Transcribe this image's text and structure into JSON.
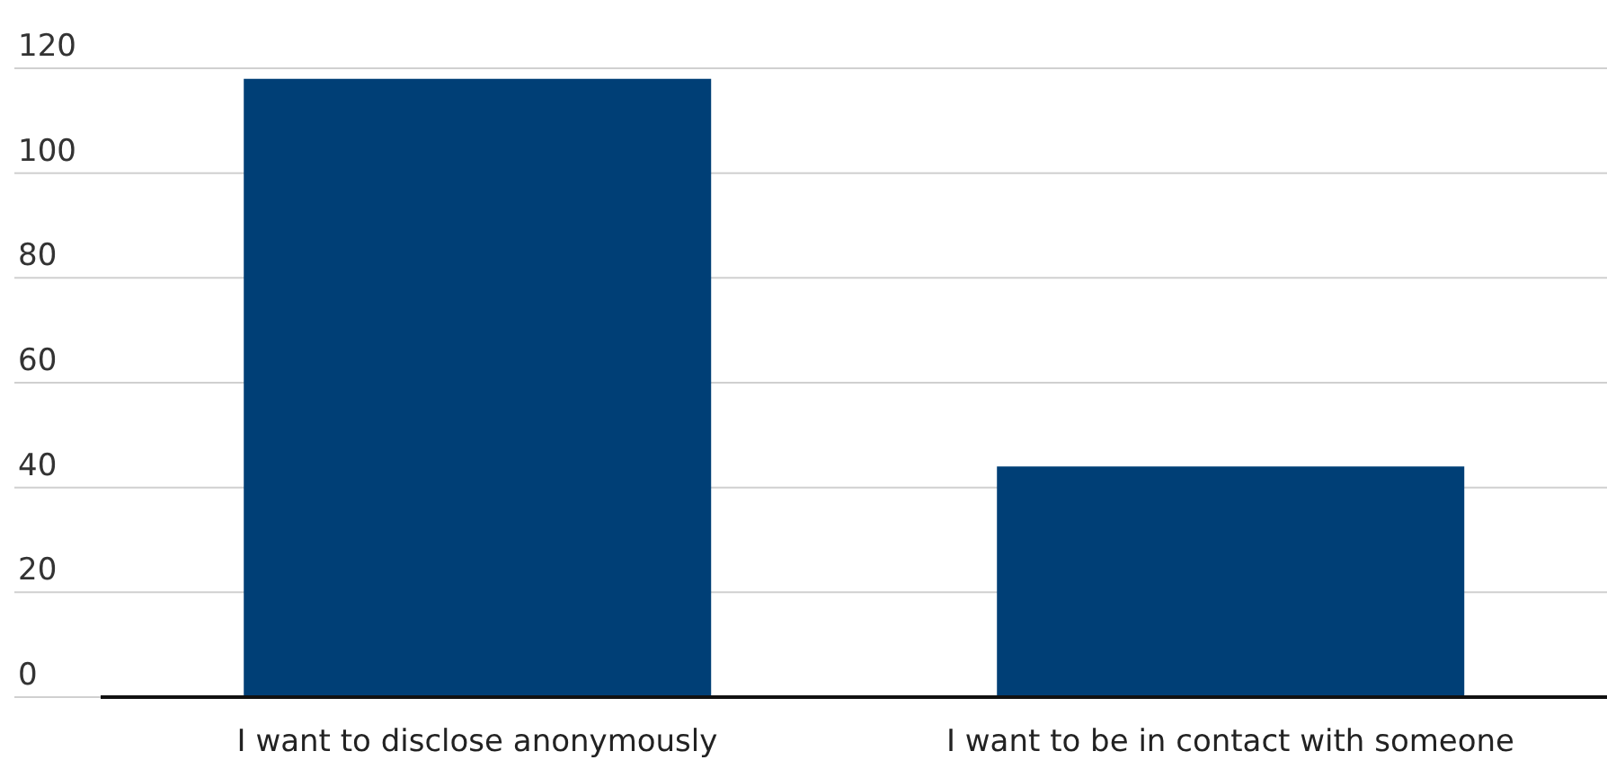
{
  "chart_data": {
    "type": "bar",
    "categories": [
      "I want to disclose anonymously",
      "I want to be in contact with someone"
    ],
    "values": [
      118,
      44
    ],
    "color": "#003f76",
    "ylim": [
      0,
      120
    ],
    "yticks": [
      0,
      20,
      40,
      60,
      80,
      100,
      120
    ],
    "grid": "y"
  }
}
